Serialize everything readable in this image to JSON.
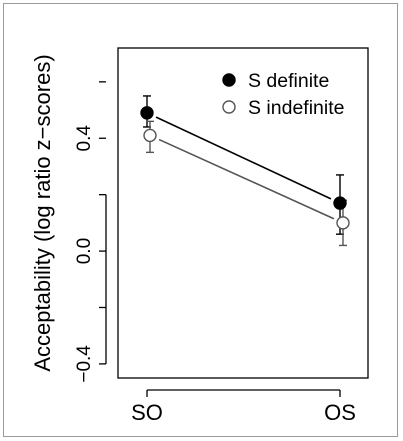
{
  "chart_data": {
    "type": "scatter",
    "title": "",
    "xlabel": "",
    "ylabel": "Acceptability (log ratio z−scores)",
    "categories": [
      "SO",
      "OS"
    ],
    "ylim": [
      -0.45,
      0.72
    ],
    "yticks": [
      -0.4,
      0.0,
      0.4
    ],
    "ytick_labels": [
      "−0.4",
      "0.0",
      "0.4"
    ],
    "grid": false,
    "legend_position": "top-right",
    "series": [
      {
        "name": "S definite",
        "marker": "filled-circle",
        "color": "#000000",
        "values": [
          0.49,
          0.17
        ],
        "err_low": [
          0.44,
          0.06
        ],
        "err_high": [
          0.55,
          0.27
        ]
      },
      {
        "name": "S indefinite",
        "marker": "open-circle",
        "color": "#555555",
        "values": [
          0.41,
          0.1
        ],
        "err_low": [
          0.35,
          0.02
        ],
        "err_high": [
          0.46,
          0.18
        ]
      }
    ]
  }
}
